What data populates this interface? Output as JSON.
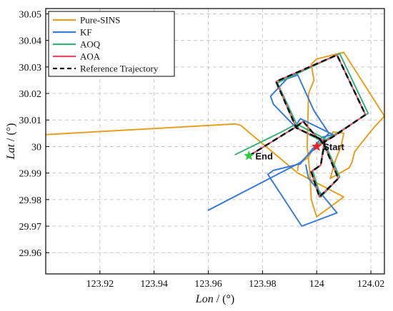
{
  "chart_data": {
    "type": "line",
    "xlabel_text": "Lon",
    "xlabel_unit": " / (°)",
    "ylabel_text": "Lat",
    "ylabel_unit": " / (°)",
    "xlim": [
      123.9,
      124.025
    ],
    "ylim": [
      29.952,
      30.052
    ],
    "xticks": [
      123.92,
      123.94,
      123.96,
      123.98,
      124,
      124.02
    ],
    "xtick_labels": [
      "123.92",
      "123.94",
      "123.96",
      "123.98",
      "124",
      "124.02"
    ],
    "yticks": [
      29.96,
      29.97,
      29.98,
      29.99,
      30,
      30.01,
      30.02,
      30.03,
      30.04,
      30.05
    ],
    "ytick_labels": [
      "29.96",
      "29.97",
      "29.98",
      "29.99",
      "30",
      "30.01",
      "30.02",
      "30.03",
      "30.04",
      "30.05"
    ],
    "grid": true,
    "legend_position": "top-left",
    "series": [
      {
        "name": "Pure-SINS",
        "color": "#E6A020",
        "dash": "none",
        "x": [
          123.9,
          123.97,
          123.972,
          123.976,
          123.993,
          124.01,
          124.0,
          123.998,
          123.9975,
          123.9965,
          123.997,
          123.999,
          123.998,
          124.0,
          124.01,
          124.025,
          124.021,
          124.017,
          124.014,
          124.013,
          124.012,
          124.005,
          124.007,
          124.009,
          124.01,
          124.006,
          124.005,
          124.0,
          123.998,
          123.997,
          123.9935,
          123.993,
          123.993
        ],
        "y": [
          30.0045,
          30.0085,
          30.008,
          30.0045,
          29.99,
          29.981,
          29.9735,
          29.98,
          29.99,
          30.0,
          30.02,
          30.025,
          30.031,
          30.033,
          30.0355,
          30.0115,
          30.007,
          30.002,
          29.998,
          29.994,
          29.992,
          29.988,
          29.995,
          30.0,
          30.005,
          30.0055,
          30.003,
          30.0,
          29.998,
          29.996,
          29.9935,
          29.992,
          29.991
        ]
      },
      {
        "name": "KF",
        "color": "#3A7BD5",
        "dash": "none",
        "x": [
          123.96,
          123.994,
          124.0,
          124.0045,
          123.999,
          123.993,
          123.989,
          123.983,
          123.984,
          123.992,
          123.994,
          124.006,
          124.002,
          123.994,
          123.984,
          123.982,
          123.9945,
          124.0075,
          123.997,
          123.996
        ],
        "y": [
          29.976,
          29.994,
          30.0,
          30.005,
          30.0135,
          30.027,
          30.0255,
          30.019,
          30.016,
          30.0075,
          30.0105,
          30.0045,
          30.0035,
          29.9935,
          29.991,
          29.9895,
          29.97,
          29.975,
          29.988,
          29.993
        ]
      },
      {
        "name": "AOQ",
        "color": "#35B37A",
        "dash": "none",
        "x": [
          123.97,
          123.987,
          123.9925,
          124.003,
          124.002,
          124.0015,
          123.9985,
          124.0015,
          124.0085,
          124.0035,
          124.002,
          123.9935,
          123.9855,
          124.0085,
          124.019,
          124.0075,
          123.999,
          124.0
        ],
        "y": [
          29.997,
          30.0055,
          30.0085,
          30.003,
          29.997,
          29.993,
          29.991,
          29.981,
          29.9885,
          30.0,
          30.002,
          30.0065,
          30.024,
          30.035,
          30.0125,
          30.005,
          30.0,
          30.0
        ]
      },
      {
        "name": "AOA",
        "color": "#E64B6B",
        "dash": "none",
        "x": [
          123.975,
          123.9925,
          123.995,
          124.0,
          124.003,
          124.0015,
          123.998,
          124.001,
          124.008,
          124.003,
          124.001,
          123.9925,
          123.985,
          124.0075,
          124.018,
          124.0065,
          124.0
        ],
        "y": [
          29.9965,
          30.0075,
          30.0095,
          30.0035,
          30.002,
          29.993,
          29.9905,
          29.981,
          29.988,
          30.0,
          30.003,
          30.007,
          30.0245,
          30.0345,
          30.012,
          30.004,
          30.0
        ]
      },
      {
        "name": "Reference Trajectory",
        "color": "#111111",
        "dash": "8,5",
        "x": [
          123.975,
          123.9925,
          123.995,
          124.0,
          124.003,
          124.0015,
          123.998,
          124.001,
          124.008,
          124.003,
          124.001,
          123.9925,
          123.985,
          124.0075,
          124.018,
          124.0065,
          124.0
        ],
        "y": [
          29.9965,
          30.0075,
          30.0095,
          30.0035,
          30.002,
          29.993,
          29.9905,
          29.981,
          29.988,
          30.0,
          30.003,
          30.007,
          30.0245,
          30.0345,
          30.012,
          30.004,
          30.0
        ]
      }
    ],
    "annotations": [
      {
        "label": "Start",
        "x": 124.0,
        "y": 30.0,
        "color": "#E8202A"
      },
      {
        "label": "End",
        "x": 123.975,
        "y": 29.9965,
        "color": "#2ECC40"
      }
    ]
  }
}
